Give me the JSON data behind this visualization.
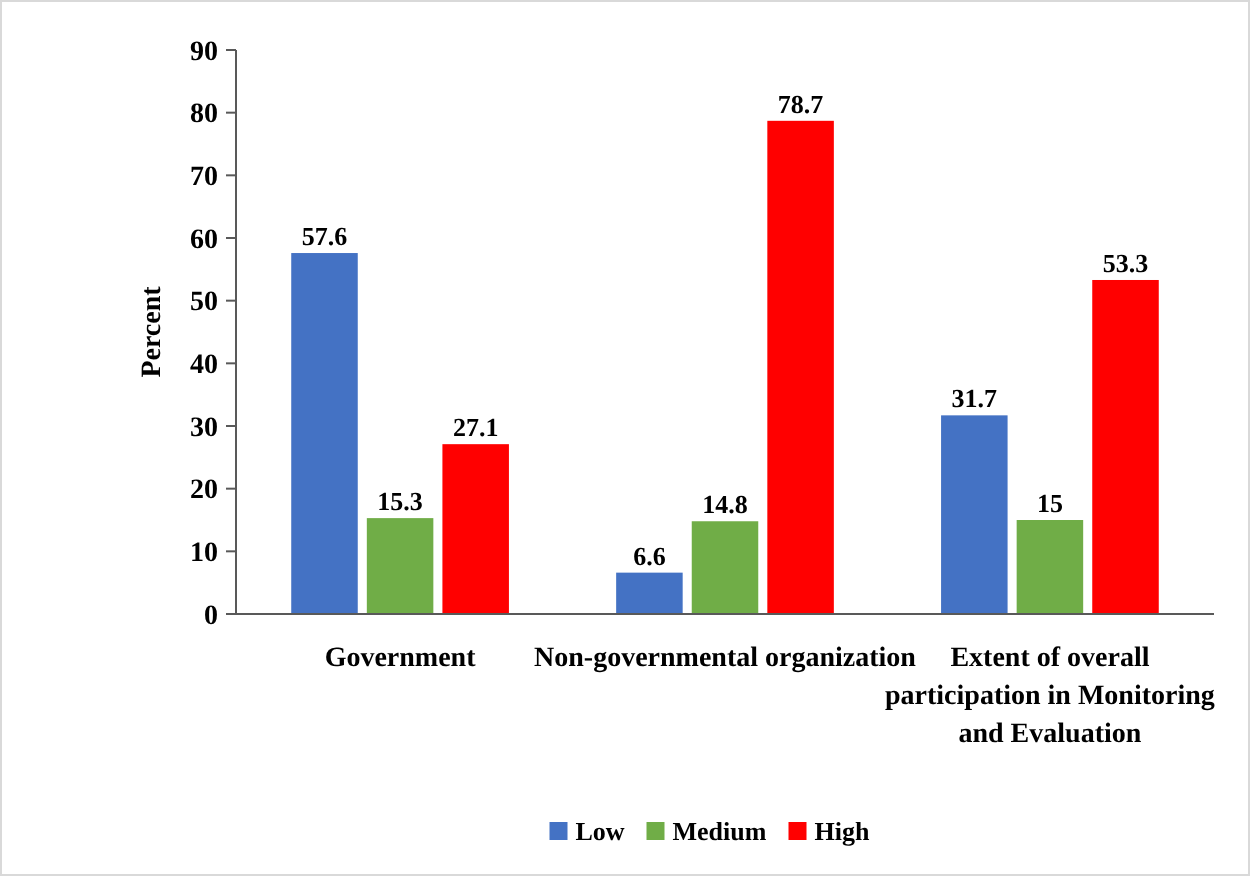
{
  "chart_data": {
    "type": "bar",
    "ylabel": "Percent",
    "categories": [
      "Government",
      "Non-governmental organization",
      "Extent of overall participation in Monitoring and Evaluation"
    ],
    "series": [
      {
        "name": "Low",
        "color": "#4472c4",
        "values": [
          57.6,
          6.6,
          31.7
        ]
      },
      {
        "name": "Medium",
        "color": "#70ad47",
        "values": [
          15.3,
          14.8,
          15
        ]
      },
      {
        "name": "High",
        "color": "#ff0000",
        "values": [
          27.1,
          78.7,
          53.3
        ]
      }
    ],
    "ylim": [
      0,
      90
    ],
    "yticks": [
      0,
      10,
      20,
      30,
      40,
      50,
      60,
      70,
      80,
      90
    ],
    "data_labels": true,
    "legend": "bottom",
    "grid": false
  }
}
